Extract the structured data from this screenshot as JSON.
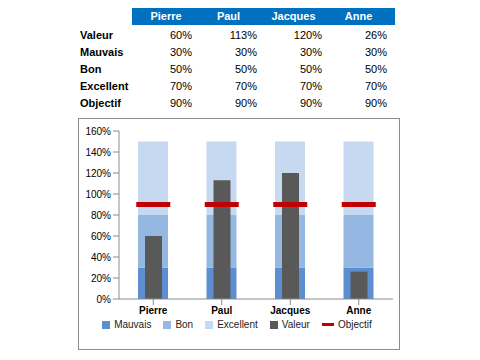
{
  "table": {
    "header": [
      "Pierre",
      "Paul",
      "Jacques",
      "Anne"
    ],
    "rows": [
      [
        "Valeur",
        "60%",
        "113%",
        "120%",
        "26%"
      ],
      [
        "Mauvais",
        "30%",
        "30%",
        "30%",
        "30%"
      ],
      [
        "Bon",
        "50%",
        "50%",
        "50%",
        "50%"
      ],
      [
        "Excellent",
        "70%",
        "70%",
        "70%",
        "70%"
      ],
      [
        "Objectif",
        "90%",
        "90%",
        "90%",
        "90%"
      ]
    ]
  },
  "chart_data": {
    "type": "bullet",
    "categories": [
      "Pierre",
      "Paul",
      "Jacques",
      "Anne"
    ],
    "stacked": true,
    "grid": false,
    "legend": "bottom",
    "ylim": [
      0,
      160
    ],
    "yticks": [
      {
        "value": 0,
        "label": "0%"
      },
      {
        "value": 20,
        "label": "20%"
      },
      {
        "value": 40,
        "label": "40%"
      },
      {
        "value": 60,
        "label": "60%"
      },
      {
        "value": 80,
        "label": "80%"
      },
      {
        "value": 100,
        "label": "100%"
      },
      {
        "value": 120,
        "label": "120%"
      },
      {
        "value": 140,
        "label": "140%"
      },
      {
        "value": 160,
        "label": "160%"
      }
    ],
    "series": [
      {
        "name": "Mauvais",
        "type": "band",
        "color": "#5B8FD0",
        "values": [
          30,
          30,
          30,
          30
        ]
      },
      {
        "name": "Bon",
        "type": "band",
        "color": "#95B8E3",
        "values": [
          50,
          50,
          50,
          50
        ]
      },
      {
        "name": "Excellent",
        "type": "band",
        "color": "#C6D9F1",
        "values": [
          70,
          70,
          70,
          70
        ]
      },
      {
        "name": "Valeur",
        "type": "bar",
        "color": "#595959",
        "values": [
          60,
          113,
          120,
          26
        ]
      },
      {
        "name": "Objectif",
        "type": "marker",
        "marker": "dash",
        "color": "#C00000",
        "values": [
          90,
          90,
          90,
          90
        ]
      }
    ]
  }
}
